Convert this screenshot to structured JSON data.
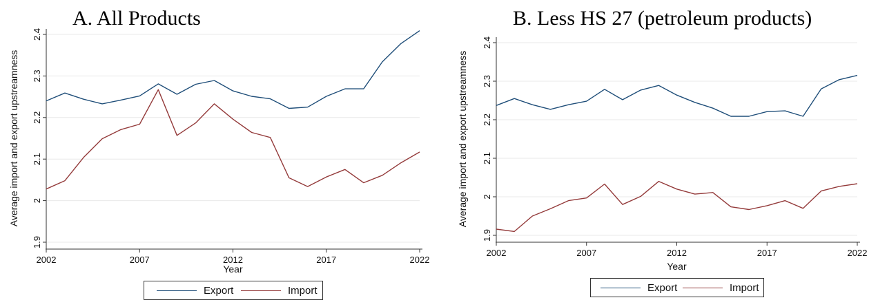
{
  "colors": {
    "export": "#1f4e79",
    "import": "#943b3b",
    "grid": "#e8e8e8",
    "axis": "#333333"
  },
  "chart_data": [
    {
      "type": "line",
      "title": "A. All Products",
      "xlabel": "Year",
      "ylabel": "Average import and export upstreamness",
      "xlim": [
        2002,
        2022
      ],
      "ylim": [
        1.9,
        2.4
      ],
      "xticks": [
        2002,
        2007,
        2012,
        2017,
        2022
      ],
      "yticks": [
        "1.9",
        "2",
        "2.1",
        "2.2",
        "2.3",
        "2.4"
      ],
      "grid": true,
      "legend": "bottom",
      "x": [
        2002,
        2003,
        2004,
        2005,
        2006,
        2007,
        2008,
        2009,
        2010,
        2011,
        2012,
        2013,
        2014,
        2015,
        2016,
        2017,
        2018,
        2019,
        2020,
        2021,
        2022
      ],
      "series": [
        {
          "name": "Export",
          "values": [
            2.24,
            2.259,
            2.244,
            2.233,
            2.242,
            2.252,
            2.281,
            2.256,
            2.28,
            2.289,
            2.264,
            2.251,
            2.245,
            2.222,
            2.225,
            2.251,
            2.269,
            2.269,
            2.334,
            2.378,
            2.409
          ]
        },
        {
          "name": "Import",
          "values": [
            2.028,
            2.048,
            2.104,
            2.149,
            2.171,
            2.184,
            2.267,
            2.157,
            2.187,
            2.233,
            2.196,
            2.164,
            2.152,
            2.055,
            2.034,
            2.057,
            2.075,
            2.043,
            2.061,
            2.091,
            2.117
          ]
        }
      ]
    },
    {
      "type": "line",
      "title": "B. Less HS 27 (petroleum products)",
      "xlabel": "Year",
      "ylabel": "Average import and export upstreamness",
      "xlim": [
        2002,
        2022
      ],
      "ylim": [
        1.9,
        2.4
      ],
      "xticks": [
        2002,
        2007,
        2012,
        2017,
        2022
      ],
      "yticks": [
        "1.9",
        "2",
        "2.1",
        "2.2",
        "2.3",
        "2.4"
      ],
      "grid": true,
      "legend": "bottom",
      "x": [
        2002,
        2003,
        2004,
        2005,
        2006,
        2007,
        2008,
        2009,
        2010,
        2011,
        2012,
        2013,
        2014,
        2015,
        2016,
        2017,
        2018,
        2019,
        2020,
        2021,
        2022
      ],
      "series": [
        {
          "name": "Export",
          "values": [
            2.237,
            2.255,
            2.239,
            2.227,
            2.239,
            2.248,
            2.279,
            2.252,
            2.277,
            2.289,
            2.264,
            2.245,
            2.23,
            2.209,
            2.209,
            2.221,
            2.223,
            2.209,
            2.28,
            2.304,
            2.315
          ]
        },
        {
          "name": "Import",
          "values": [
            1.916,
            1.91,
            1.95,
            1.969,
            1.99,
            1.997,
            2.033,
            1.98,
            2.001,
            2.04,
            2.02,
            2.007,
            2.011,
            1.974,
            1.967,
            1.977,
            1.99,
            1.97,
            2.015,
            2.027,
            2.034
          ]
        }
      ]
    }
  ]
}
